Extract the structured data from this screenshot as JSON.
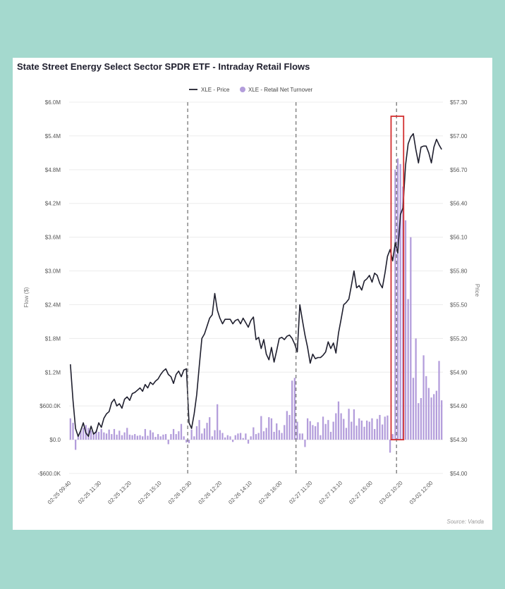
{
  "colors": {
    "background": "#a4d9ce",
    "panel": "#ffffff",
    "price_line": "#1f1f2e",
    "flow_bars": "#b39ddb",
    "highlight_box": "#d32f2f",
    "session_divider": "#777777",
    "gridline": "#ececec"
  },
  "chart_data": {
    "type": "bar",
    "title": "State Street Energy Select Sector SPDR ETF -  Intraday Retail Flows",
    "legend_position": "top-center",
    "source": "Source: Vanda",
    "grid": true,
    "ylabel": "Flow ($)",
    "y2label": "Price",
    "ylim": [
      -600000,
      6000000
    ],
    "y2lim": [
      54.0,
      57.3
    ],
    "yticks": [
      "-$600.0K",
      "$0.0",
      "$600.0K",
      "$1.2M",
      "$1.8M",
      "$2.4M",
      "$3.0M",
      "$3.6M",
      "$4.2M",
      "$4.8M",
      "$5.4M",
      "$6.0M"
    ],
    "y2ticks": [
      "$54.00",
      "$54.30",
      "$54.60",
      "$54.90",
      "$55.20",
      "$55.50",
      "$55.80",
      "$56.10",
      "$56.40",
      "$56.70",
      "$57.00",
      "$57.30"
    ],
    "xticks": [
      "02-25 09:40",
      "02-25 11:30",
      "02-25 13:20",
      "02-25 15:10",
      "02-26 10:30",
      "02-26 12:20",
      "02-26 14:10",
      "02-26 16:00",
      "02-27 11:20",
      "02-27 13:10",
      "02-27 15:00",
      "03-02 10:20",
      "03-02 12:00"
    ],
    "session_breaks": [
      "02-26 09:30",
      "02-27 09:30",
      "03-02 09:30"
    ],
    "highlight_range": [
      "03-02 09:30",
      "03-02 10:00"
    ],
    "series": [
      {
        "name": "XLE - Price",
        "type": "line",
        "axis": "right",
        "values": [
          54.97,
          54.65,
          54.4,
          54.33,
          54.38,
          54.45,
          54.36,
          54.33,
          54.42,
          54.35,
          54.37,
          54.45,
          54.41,
          54.49,
          54.53,
          54.55,
          54.63,
          54.66,
          54.6,
          54.62,
          54.58,
          54.66,
          54.68,
          54.65,
          54.71,
          54.72,
          54.74,
          54.76,
          54.73,
          54.79,
          54.76,
          54.81,
          54.79,
          54.82,
          54.84,
          54.88,
          54.91,
          54.93,
          54.88,
          54.86,
          54.8,
          54.88,
          54.91,
          54.86,
          54.92,
          54.93,
          54.45,
          54.4,
          54.53,
          54.7,
          54.96,
          55.2,
          55.24,
          55.31,
          55.38,
          55.41,
          55.6,
          55.45,
          55.38,
          55.33,
          55.37,
          55.37,
          55.37,
          55.33,
          55.36,
          55.37,
          55.33,
          55.38,
          55.34,
          55.3,
          55.36,
          55.39,
          55.19,
          55.21,
          55.11,
          55.19,
          55.06,
          55.01,
          55.12,
          54.99,
          55.09,
          55.2,
          55.21,
          55.19,
          55.22,
          55.23,
          55.2,
          55.15,
          55.08,
          55.5,
          55.36,
          55.23,
          55.12,
          54.98,
          55.06,
          55.02,
          55.03,
          55.03,
          55.05,
          55.08,
          55.17,
          55.11,
          55.16,
          55.07,
          55.25,
          55.37,
          55.5,
          55.52,
          55.55,
          55.67,
          55.8,
          55.65,
          55.67,
          55.63,
          55.71,
          55.73,
          55.76,
          55.7,
          55.78,
          55.76,
          55.69,
          55.65,
          55.78,
          55.93,
          55.99,
          55.89,
          56.05,
          55.96,
          56.3,
          56.36,
          56.74,
          56.93,
          56.99,
          57.02,
          56.88,
          56.76,
          56.9,
          56.91,
          56.91,
          56.85,
          56.76,
          56.9,
          56.97,
          56.92,
          56.88
        ]
      },
      {
        "name": "XLE - Retail Net Turnover",
        "type": "bar",
        "axis": "left",
        "values": [
          380000,
          300000,
          -180000,
          80000,
          160000,
          210000,
          260000,
          210000,
          160000,
          130000,
          160000,
          140000,
          190000,
          130000,
          110000,
          180000,
          100000,
          190000,
          90000,
          160000,
          80000,
          130000,
          210000,
          90000,
          80000,
          100000,
          70000,
          80000,
          60000,
          190000,
          70000,
          170000,
          130000,
          50000,
          100000,
          60000,
          90000,
          100000,
          -80000,
          100000,
          190000,
          100000,
          150000,
          280000,
          60000,
          -50000,
          -60000,
          180000,
          60000,
          240000,
          350000,
          110000,
          200000,
          300000,
          400000,
          60000,
          170000,
          630000,
          170000,
          120000,
          40000,
          80000,
          60000,
          -40000,
          80000,
          110000,
          120000,
          30000,
          110000,
          -70000,
          60000,
          220000,
          100000,
          120000,
          420000,
          150000,
          210000,
          400000,
          380000,
          140000,
          290000,
          170000,
          120000,
          260000,
          510000,
          440000,
          1050000,
          1100000,
          320000,
          110000,
          110000,
          -130000,
          380000,
          330000,
          260000,
          240000,
          310000,
          80000,
          410000,
          280000,
          350000,
          140000,
          320000,
          470000,
          680000,
          470000,
          370000,
          210000,
          550000,
          320000,
          540000,
          250000,
          380000,
          340000,
          230000,
          340000,
          320000,
          380000,
          190000,
          370000,
          440000,
          270000,
          410000,
          430000,
          -230000,
          100000,
          4800000,
          5000000,
          4900000,
          4500000,
          3900000,
          2500000,
          3600000,
          1100000,
          1800000,
          650000,
          740000,
          1500000,
          1130000,
          920000,
          750000,
          810000,
          870000,
          1400000,
          700000
        ]
      }
    ]
  }
}
